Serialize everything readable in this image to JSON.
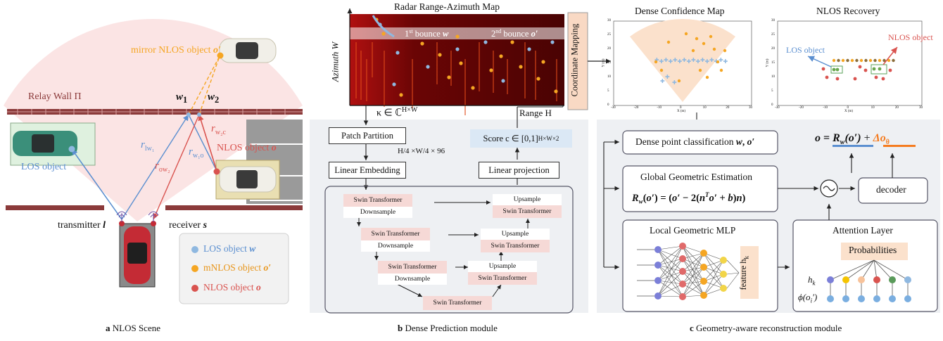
{
  "panel_a": {
    "caption_letter": "a",
    "caption": "NLOS Scene",
    "mirror_label": "mirror NLOS object ",
    "mirror_sym": "o′",
    "relay_wall": "Relay Wall Π",
    "w1": "w",
    "w1_sub": "1",
    "w2": "w",
    "w2_sub": "2",
    "r_lw1": "r",
    "r_lw1_sub": "lw₁",
    "r_ow2": "r",
    "r_ow2_sub": "ow₂",
    "r_w1o": "r",
    "r_w1o_sub": "w₁o",
    "r_w2c": "r",
    "r_w2c_sub": "w₂c",
    "nlos_label": "NLOS object ",
    "nlos_sym": "o",
    "los_label": "LOS object",
    "transmitter": "transmitter ",
    "transmitter_sym": "l",
    "receiver": "receiver ",
    "receiver_sym": "s",
    "legend": [
      {
        "label": "LOS object ",
        "sym": "w",
        "color": "#8fb8e0"
      },
      {
        "label": "mNLOS object ",
        "sym": "o′",
        "color": "#f5a623"
      },
      {
        "label": "NLOS object ",
        "sym": "o",
        "color": "#d9534f"
      }
    ]
  },
  "panel_b": {
    "caption_letter": "b",
    "caption": "Dense Prediction module",
    "map_title": "Radar Range-Azimuth Map",
    "azimuth_label": "Azimuth W",
    "range_label": "Range H",
    "bounce1": "1st bounce w",
    "bounce1_sup": "st",
    "bounce2": "2nd bounce o′",
    "bounce2_sup": "nd",
    "coord_mapping": "Coordinate Mapping",
    "kappa": "κ ∈ ℂ",
    "kappa_sup": "H×W",
    "patch_partition": "Patch Partition",
    "dims": "H/4 ×W/4 × 96",
    "linear_embedding": "Linear Embedding",
    "score": "Score c ∈ [0,1]",
    "score_sup": "H×W×2",
    "linear_projection": "Linear projection",
    "swin": "Swin Transformer",
    "downsample": "Downsample",
    "upsample": "Upsample"
  },
  "panel_c": {
    "caption_letter": "c",
    "caption": "Geometry-aware reconstruction module",
    "dense_conf_title": "Dense Confidence Map",
    "nlos_recovery_title": "NLOS Recovery",
    "los_object": "LOS object",
    "nlos_object": "NLOS object",
    "dense_point": "Dense point classification w, o′",
    "formula_top": "o = R",
    "formula_sub": "w",
    "formula_arg": "(o′)",
    "formula_plus": "+",
    "formula_delta": "Δo",
    "formula_delta_sub": "θ",
    "global_title": "Global Geometric Estimation",
    "global_formula": "R_w(o′) = (o′ − 2(nᵀo′ + b)n)",
    "decoder": "decoder",
    "local_title": "Local Geometric MLP",
    "feature": "feature h",
    "feature_sub": "k",
    "attention_title": "Attention Layer",
    "probabilities": "Probabilities",
    "hk": "h",
    "hk_sub": "k",
    "phi": "ϕ(o",
    "phi_rest": "i′)",
    "xlabel": "X (m)",
    "ylabel": "Y (m)",
    "x_ticks": [
      "-30",
      "-20",
      "-10",
      "0",
      "10",
      "20",
      "30"
    ],
    "y_ticks": [
      "0",
      "5",
      "10",
      "15",
      "20",
      "25",
      "30"
    ]
  },
  "colors": {
    "los": "#8fb8e0",
    "mnlos": "#f5a623",
    "nlos": "#d9534f",
    "pink_region": "#fbe3e3",
    "wall": "#8b3a3a",
    "panel_bg": "#eef0f3",
    "score_bg": "#dbe8f5",
    "coord_bg": "#f9d9c4"
  }
}
